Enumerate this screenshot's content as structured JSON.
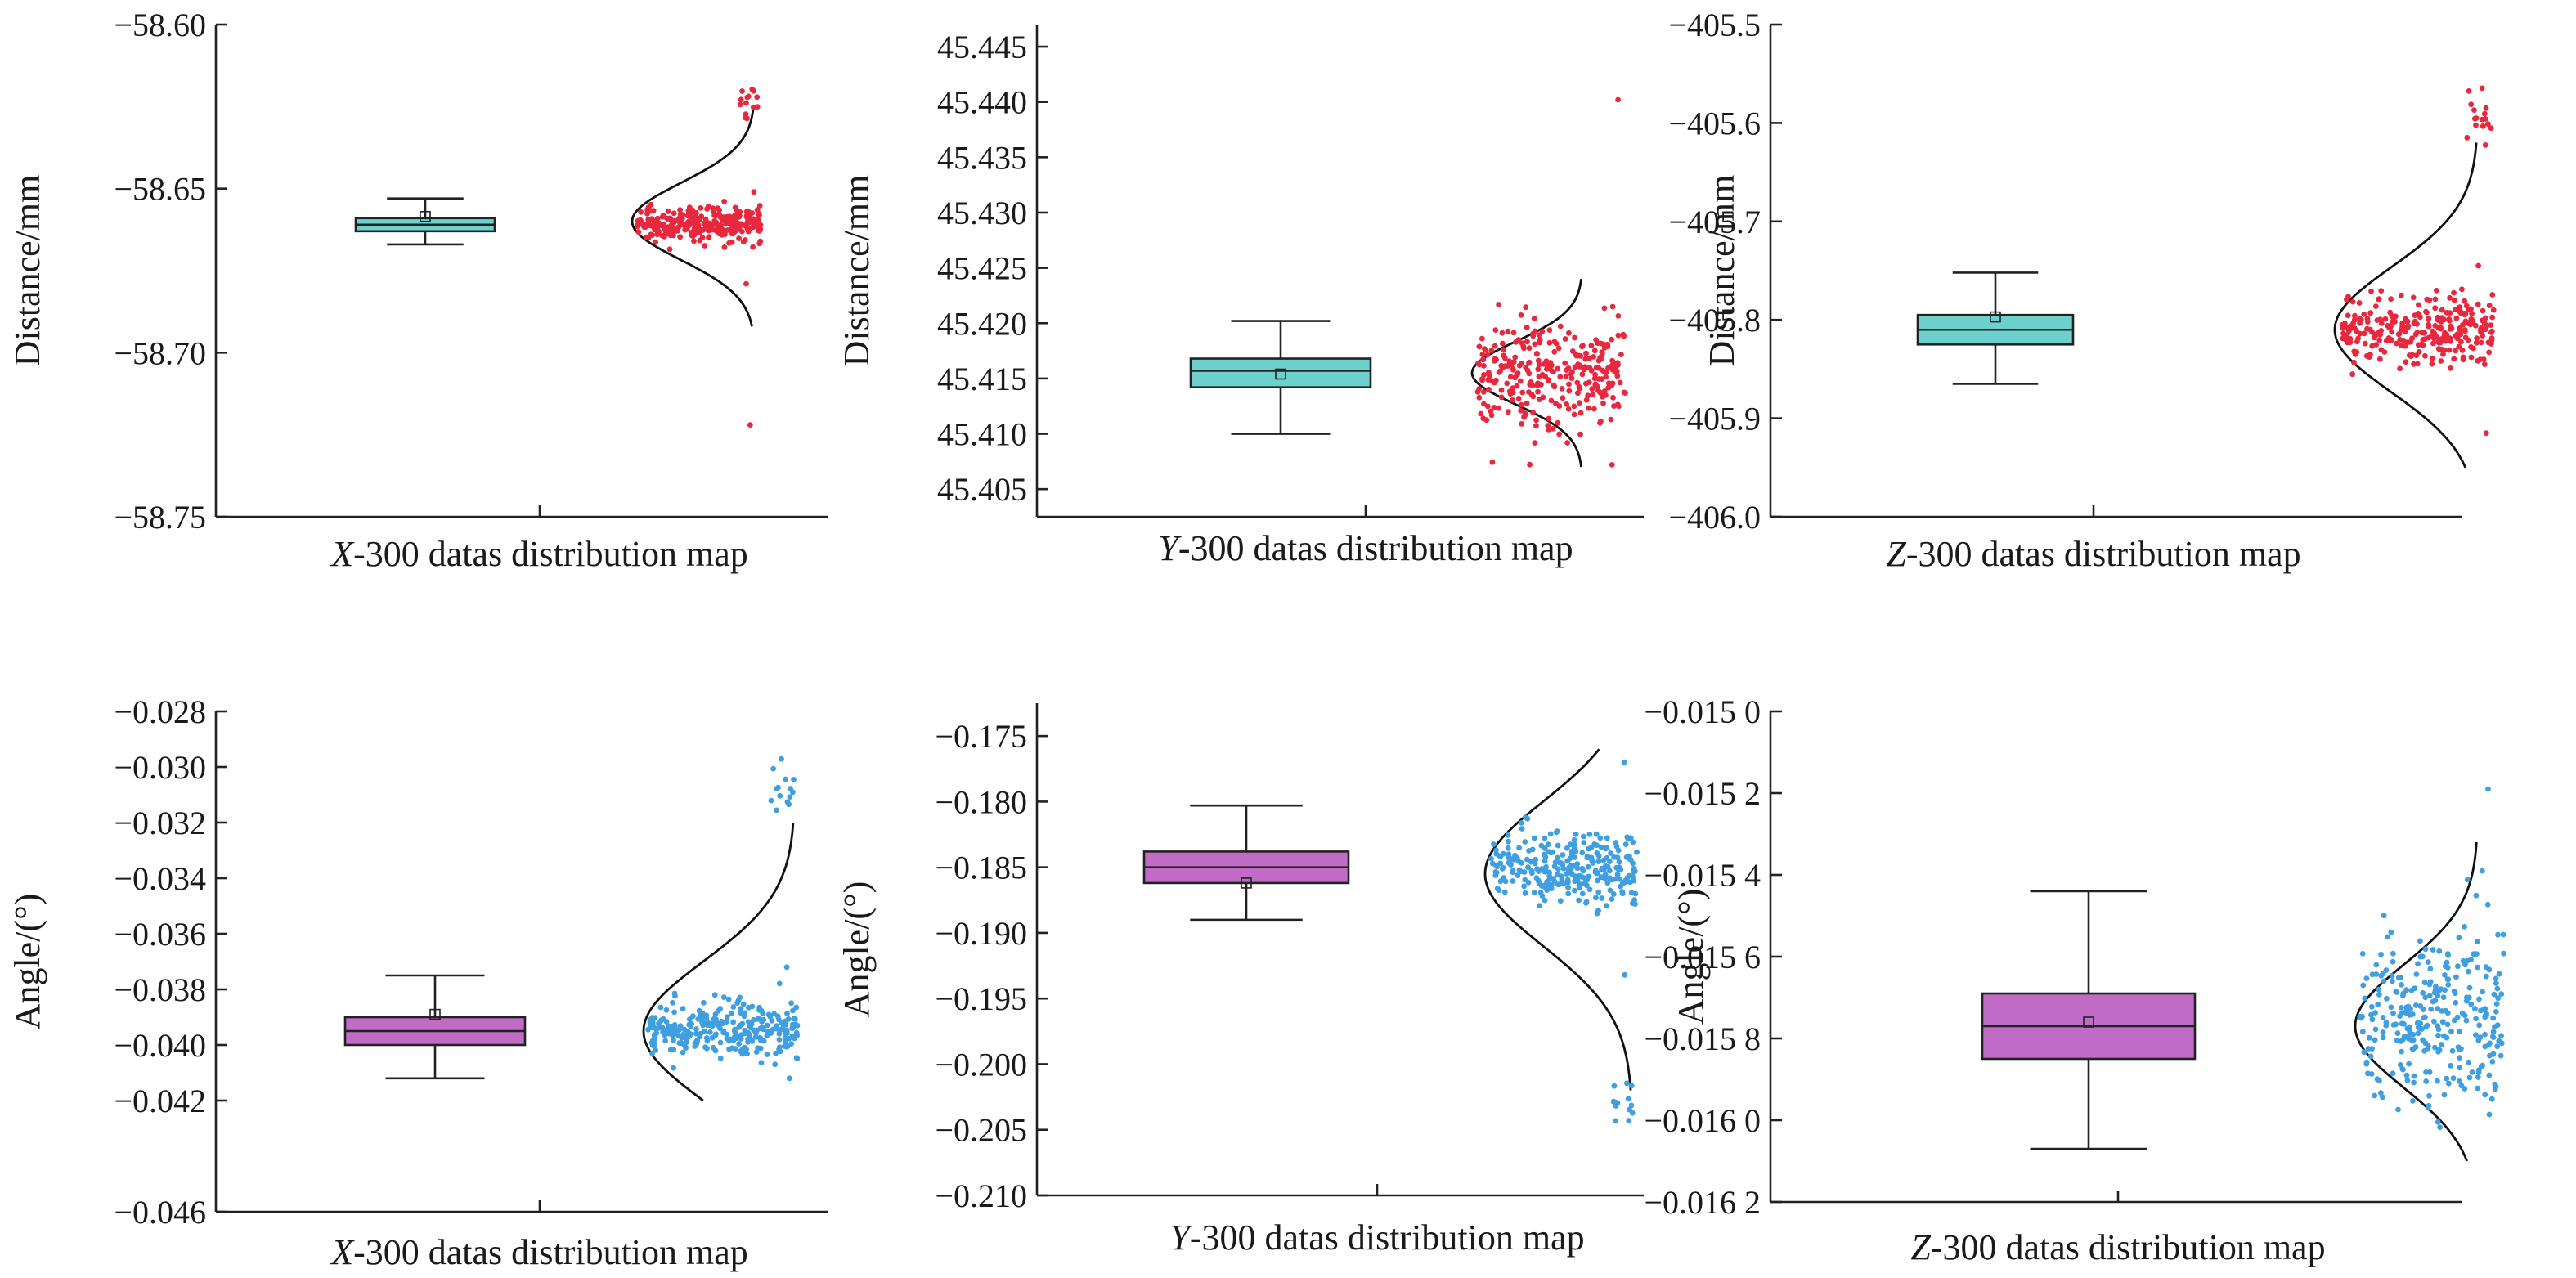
{
  "colors": {
    "distance_box": "#6cd0cc",
    "angle_box": "#c06cc6",
    "distance_points": "#e8283e",
    "angle_points": "#3f9fe0",
    "axis": "#222222"
  },
  "chart_data": [
    {
      "type": "box-scatter-distribution",
      "xlabel": "X-300 datas distribution map",
      "xlabel_var": "X",
      "xlabel_rest": "-300 datas distribution map",
      "ylabel": "Distance/mm",
      "ylim": [
        -58.75,
        -58.6
      ],
      "yticks": [
        "−58.60",
        "−58.65",
        "−58.70",
        "−58.75"
      ],
      "ytick_values": [
        -58.6,
        -58.65,
        -58.7,
        -58.75
      ],
      "n_points": 300,
      "box": {
        "whisker_low": -58.667,
        "q1": -58.663,
        "median": -58.661,
        "q3": -58.659,
        "whisker_high": -58.653,
        "mean": -58.6585
      },
      "fit": {
        "mean": -58.66,
        "y_low": -58.692,
        "y_high": -58.625
      },
      "points": {
        "center": -58.661,
        "spread": 0.0025,
        "clusters": [
          {
            "value": -58.624,
            "spread": 0.003,
            "count": 14
          }
        ],
        "outliers": [
          -58.722,
          -58.679,
          -58.651
        ]
      },
      "box_color": "distance_box",
      "point_color": "distance_points"
    },
    {
      "type": "box-scatter-distribution",
      "xlabel": "Y-300 datas distribution map",
      "xlabel_var": "Y",
      "xlabel_rest": "-300 datas distribution map",
      "ylabel": "Distance/mm",
      "ylim": [
        45.4025,
        45.447
      ],
      "yticks": [
        "45.445",
        "45.440",
        "45.435",
        "45.430",
        "45.425",
        "45.420",
        "45.415",
        "45.410",
        "45.405"
      ],
      "ytick_values": [
        45.445,
        45.44,
        45.435,
        45.43,
        45.425,
        45.42,
        45.415,
        45.41,
        45.405
      ],
      "n_points": 300,
      "box": {
        "whisker_low": 45.41,
        "q1": 45.4142,
        "median": 45.4157,
        "q3": 45.4168,
        "whisker_high": 45.4202,
        "mean": 45.4154
      },
      "fit": {
        "mean": 45.4155,
        "y_low": 45.407,
        "y_high": 45.424
      },
      "points": {
        "center": 45.4155,
        "spread": 0.0025,
        "clusters": [],
        "outliers": [
          45.4402,
          45.4072,
          45.4215
        ]
      },
      "box_color": "distance_box",
      "point_color": "distance_points"
    },
    {
      "type": "box-scatter-distribution",
      "xlabel": "Z-300 datas distribution map",
      "xlabel_var": "Z",
      "xlabel_rest": "-300 datas distribution map",
      "ylabel": "Distance/mm",
      "ylim": [
        -406.0,
        -405.5
      ],
      "yticks": [
        "−405.5",
        "−405.6",
        "−405.7",
        "−405.8",
        "−405.9",
        "−406.0"
      ],
      "ytick_values": [
        -405.5,
        -405.6,
        -405.7,
        -405.8,
        -405.9,
        -406.0
      ],
      "n_points": 300,
      "box": {
        "whisker_low": -405.865,
        "q1": -405.825,
        "median": -405.81,
        "q3": -405.795,
        "whisker_high": -405.752,
        "mean": -405.797
      },
      "fit": {
        "mean": -405.81,
        "y_low": -405.95,
        "y_high": -405.62
      },
      "points": {
        "center": -405.81,
        "spread": 0.018,
        "clusters": [
          {
            "value": -405.6,
            "spread": 0.02,
            "count": 16
          }
        ],
        "outliers": [
          -405.915,
          -405.745
        ]
      },
      "box_color": "distance_box",
      "point_color": "distance_points"
    },
    {
      "type": "box-scatter-distribution",
      "xlabel": "X-300 datas distribution map",
      "xlabel_var": "X",
      "xlabel_rest": "-300 datas distribution map",
      "ylabel": "Angle/(°)",
      "ylim": [
        -0.046,
        -0.028
      ],
      "yticks": [
        "−0.028",
        "−0.030",
        "−0.032",
        "−0.034",
        "−0.036",
        "−0.038",
        "−0.040",
        "−0.042",
        "−0.046"
      ],
      "ytick_values": [
        -0.028,
        -0.03,
        -0.032,
        -0.034,
        -0.036,
        -0.038,
        -0.04,
        -0.042,
        -0.046
      ],
      "n_points": 300,
      "box": {
        "whisker_low": -0.0412,
        "q1": -0.04,
        "median": -0.0395,
        "q3": -0.039,
        "whisker_high": -0.0375,
        "mean": -0.0389
      },
      "fit": {
        "mean": -0.0395,
        "y_low": -0.042,
        "y_high": -0.032
      },
      "points": {
        "center": -0.0395,
        "spread": 0.0005,
        "clusters": [
          {
            "value": -0.0308,
            "spread": 0.0004,
            "count": 14
          }
        ],
        "outliers": [
          -0.0372,
          -0.0412
        ]
      },
      "box_color": "angle_box",
      "point_color": "angle_points"
    },
    {
      "type": "box-scatter-distribution",
      "xlabel": "Y-300 datas distribution map",
      "xlabel_var": "Y",
      "xlabel_rest": "-300 datas distribution map",
      "ylabel": "Angle/(°)",
      "ylim": [
        -0.21,
        -0.1725
      ],
      "yticks": [
        "−0.175",
        "−0.180",
        "−0.185",
        "−0.190",
        "−0.195",
        "−0.200",
        "−0.205",
        "−0.210"
      ],
      "ytick_values": [
        -0.175,
        -0.18,
        -0.185,
        -0.19,
        -0.195,
        -0.2,
        -0.205,
        -0.21
      ],
      "n_points": 300,
      "box": {
        "whisker_low": -0.189,
        "q1": -0.1862,
        "median": -0.185,
        "q3": -0.1838,
        "whisker_high": -0.1803,
        "mean": -0.1862
      },
      "fit": {
        "mean": -0.1855,
        "y_low": -0.202,
        "y_high": -0.176
      },
      "points": {
        "center": -0.185,
        "spread": 0.0013,
        "clusters": [
          {
            "value": -0.203,
            "spread": 0.0009,
            "count": 14
          }
        ],
        "outliers": [
          -0.177,
          -0.1932
        ]
      },
      "box_color": "angle_box",
      "point_color": "angle_points"
    },
    {
      "type": "box-scatter-distribution",
      "xlabel": "Z-300 datas distribution map",
      "xlabel_var": "Z",
      "xlabel_rest": "-300 datas distribution map",
      "ylabel": "Angle/(°)",
      "ylim": [
        -0.0162,
        -0.015
      ],
      "yticks": [
        "−0.015 0",
        "−0.015 2",
        "−0.015 4",
        "−0.015 6",
        "−0.015 8",
        "−0.016 0",
        "−0.016 2"
      ],
      "ytick_values": [
        -0.015,
        -0.0152,
        -0.0154,
        -0.0156,
        -0.0158,
        -0.016,
        -0.0162
      ],
      "n_points": 300,
      "box": {
        "whisker_low": -0.01607,
        "q1": -0.01585,
        "median": -0.01577,
        "q3": -0.01569,
        "whisker_high": -0.01544,
        "mean": -0.01576
      },
      "fit": {
        "mean": -0.01577,
        "y_low": -0.0161,
        "y_high": -0.01532
      },
      "points": {
        "center": -0.01575,
        "spread": 0.0001,
        "clusters": [],
        "outliers": [
          -0.01519
        ]
      },
      "box_color": "angle_box",
      "point_color": "angle_points"
    }
  ]
}
